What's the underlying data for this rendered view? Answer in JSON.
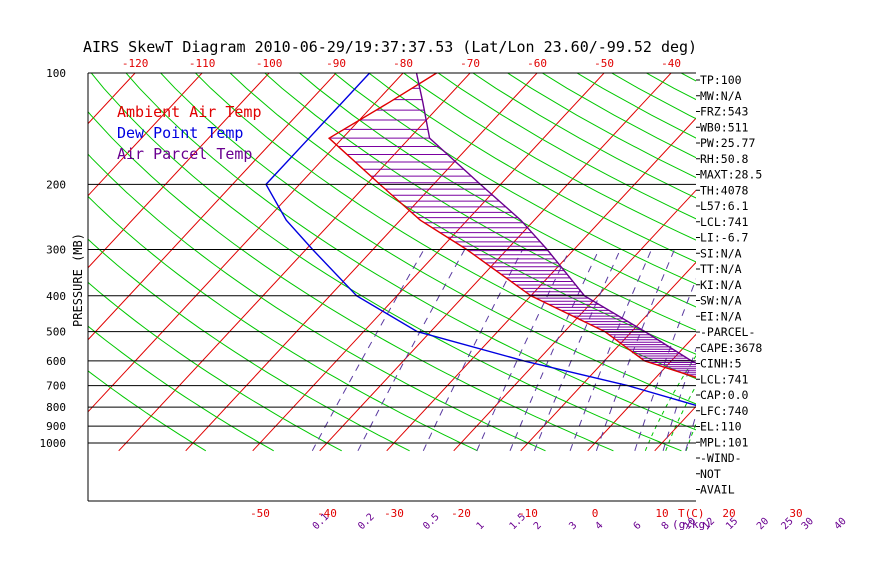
{
  "chart_data": {
    "type": "skewt",
    "title": "AIRS SkewT Diagram 2010-06-29/19:37:37.53 (Lat/Lon 23.60/-99.52 deg)",
    "ylabel": "PRESSURE (MB)",
    "top_axis_ticks": [
      "-120",
      "-110",
      "-100",
      "-90",
      "-80",
      "-70",
      "-60",
      "-50",
      "-40"
    ],
    "bottom_temp_ticks": [
      "-50",
      "-40",
      "-30",
      "-20",
      "-10",
      "0",
      "10",
      "20",
      "30"
    ],
    "bottom_temp_label": "T(C)",
    "mixing_ratio_ticks": [
      "0.1",
      "0.2",
      "0.5",
      "1",
      "1.5",
      "2",
      "3",
      "4",
      "6",
      "8",
      "10",
      "12",
      "15",
      "20",
      "25",
      "30",
      "40"
    ],
    "mixing_ratio_label": "(g/kg)",
    "pressure_levels": [
      {
        "label": "100",
        "p": 100
      },
      {
        "label": "200",
        "p": 200
      },
      {
        "label": "300",
        "p": 300
      },
      {
        "label": "400",
        "p": 400
      },
      {
        "label": "500",
        "p": 500
      },
      {
        "label": "600",
        "p": 600
      },
      {
        "label": "700",
        "p": 700
      },
      {
        "label": "800",
        "p": 800
      },
      {
        "label": "900",
        "p": 900
      },
      {
        "label": "1000",
        "p": 1000
      }
    ],
    "legend": [
      {
        "label": "Ambient Air Temp",
        "color": "#e00000"
      },
      {
        "label": "Dew Point Temp",
        "color": "#0000e0"
      },
      {
        "label": "Air Parcel Temp",
        "color": "#6a0090"
      }
    ],
    "series": [
      {
        "name": "Ambient Air Temp",
        "color": "#e00000",
        "points": [
          [
            100,
            -75
          ],
          [
            120,
            -78
          ],
          [
            150,
            -82
          ],
          [
            200,
            -68
          ],
          [
            250,
            -57
          ],
          [
            300,
            -46
          ],
          [
            400,
            -30
          ],
          [
            500,
            -14
          ],
          [
            600,
            -4
          ],
          [
            700,
            11
          ],
          [
            800,
            19
          ]
        ]
      },
      {
        "name": "Dew Point Temp",
        "color": "#0000e0",
        "points": [
          [
            100,
            -85
          ],
          [
            150,
            -85
          ],
          [
            200,
            -85
          ],
          [
            250,
            -77
          ],
          [
            300,
            -69
          ],
          [
            400,
            -56
          ],
          [
            500,
            -42
          ],
          [
            600,
            -22
          ],
          [
            700,
            -3
          ],
          [
            800,
            11
          ]
        ]
      },
      {
        "name": "Air Parcel Temp",
        "color": "#6a0090",
        "points": [
          [
            100,
            -78
          ],
          [
            120,
            -73
          ],
          [
            150,
            -67
          ],
          [
            200,
            -53
          ],
          [
            250,
            -42
          ],
          [
            300,
            -34
          ],
          [
            400,
            -22
          ],
          [
            500,
            -8
          ],
          [
            600,
            3
          ],
          [
            700,
            14
          ],
          [
            740,
            19
          ],
          [
            800,
            21
          ]
        ]
      }
    ],
    "indices": [
      "TP:100",
      "MW:N/A",
      "FRZ:543",
      "WB0:511",
      "PW:25.77",
      "RH:50.8",
      "MAXT:28.5",
      "TH:4078",
      "L57:6.1",
      "LCL:741",
      "LI:-6.7",
      "SI:N/A",
      "TT:N/A",
      "KI:N/A",
      "SW:N/A",
      "EI:N/A",
      "-PARCEL-",
      "CAPE:3678",
      "CINH:5",
      "LCL:741",
      "CAP:0.0",
      "LFC:740",
      "EL:110",
      "MPL:101",
      "-WIND-",
      "NOT",
      "AVAIL"
    ],
    "colors": {
      "isotherm": "#e00000",
      "dry_adiabat": "#00c800",
      "mixing_ratio": "#5a3aa0",
      "grid": "#000000",
      "shade": "#7a00a0"
    }
  }
}
